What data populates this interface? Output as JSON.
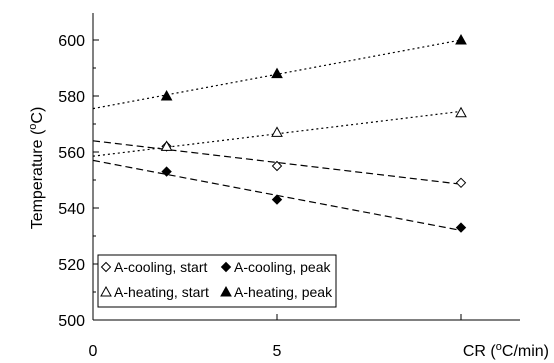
{
  "chart_data": {
    "type": "scatter",
    "xlabel": "CR (",
    "xlabel_sup": "o",
    "xlabel_rest": "C/min)",
    "ylabel": "Temperature (",
    "ylabel_sup": "o",
    "ylabel_rest": "C)",
    "xlim": [
      0,
      10
    ],
    "ylim": [
      500,
      610
    ],
    "x_ticks": [
      0,
      5
    ],
    "x_tick_labels": [
      "0",
      "5"
    ],
    "y_ticks": [
      500,
      520,
      540,
      560,
      580,
      600
    ],
    "y_tick_labels": [
      "500",
      "520",
      "540",
      "560",
      "580",
      "600"
    ],
    "grid": false,
    "legend_position": "bottom-left",
    "series": [
      {
        "name": "A-cooling, start",
        "marker": "diamond-open",
        "x": [
          2,
          5,
          10
        ],
        "y": [
          562,
          555,
          549
        ],
        "trend": {
          "style": "dashed",
          "x": [
            0,
            10
          ],
          "y": [
            564,
            548.5
          ]
        }
      },
      {
        "name": "A-cooling, peak",
        "marker": "diamond-filled",
        "x": [
          2,
          5,
          10
        ],
        "y": [
          553,
          543,
          533
        ],
        "trend": {
          "style": "dashed",
          "x": [
            0,
            10
          ],
          "y": [
            557,
            532
          ]
        }
      },
      {
        "name": "A-heating, start",
        "marker": "triangle-open",
        "x": [
          2,
          5,
          10
        ],
        "y": [
          562,
          567,
          574
        ],
        "trend": {
          "style": "dotted",
          "x": [
            0,
            10
          ],
          "y": [
            558.5,
            574.5
          ]
        }
      },
      {
        "name": "A-heating, peak",
        "marker": "triangle-filled",
        "x": [
          2,
          5,
          10
        ],
        "y": [
          580,
          588,
          600
        ],
        "trend": {
          "style": "dotted",
          "x": [
            0,
            10
          ],
          "y": [
            575.5,
            600
          ]
        }
      }
    ]
  }
}
